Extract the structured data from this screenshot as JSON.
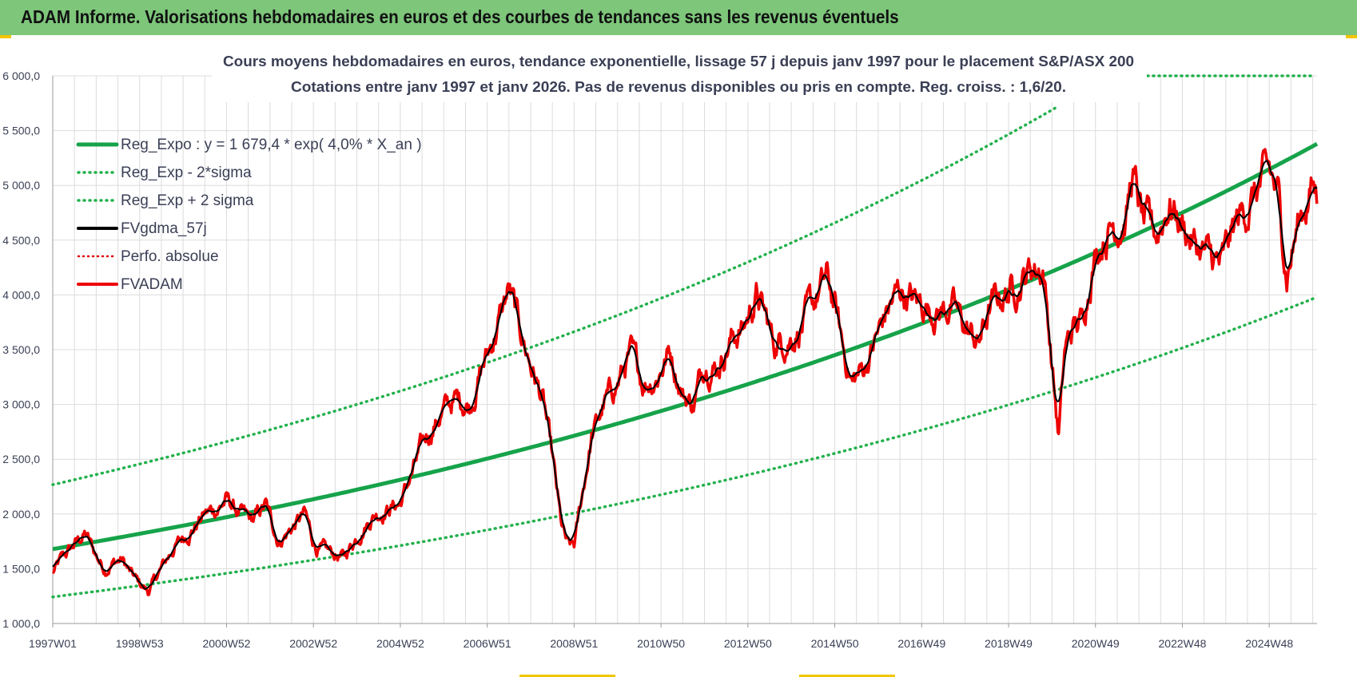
{
  "banner": {
    "title": "ADAM Informe. Valorisations hebdomadaires en euros et des courbes de tendances sans les revenus éventuels"
  },
  "chart_data": {
    "type": "line",
    "title_lines": [
      "Cours moyens hebdomadaires en euros, tendance exponentielle, lissage 57 j depuis janv 1997 pour le placement S&P/ASX 200",
      "Cotations entre janv 1997 et janv 2026. Pas de revenus disponibles ou pris  en compte. Reg. croiss. : 1,6/20."
    ],
    "xlabel": "",
    "ylabel": "",
    "x_range": [
      1997.0,
      2026.1
    ],
    "ylim": [
      1000,
      6000
    ],
    "y_ticks": [
      1000,
      1500,
      2000,
      2500,
      3000,
      3500,
      4000,
      4500,
      5000,
      5500,
      6000
    ],
    "y_tick_labels": [
      "1 000,0",
      "1 500,0",
      "2 000,0",
      "2 500,0",
      "3 000,0",
      "3 500,0",
      "4 000,0",
      "4 500,0",
      "5 000,0",
      "5 500,0",
      "6 000,0"
    ],
    "x_ticks": [
      1997.0,
      1999.0,
      2001.0,
      2003.0,
      2005.0,
      2007.0,
      2009.0,
      2011.0,
      2013.0,
      2015.0,
      2017.0,
      2019.0,
      2021.0,
      2023.0,
      2025.0
    ],
    "x_tick_labels": [
      "1997W01",
      "1998W53",
      "2000W52",
      "2002W52",
      "2004W52",
      "2006W51",
      "2008W51",
      "2010W50",
      "2012W50",
      "2014W50",
      "2016W49",
      "2018W49",
      "2020W49",
      "2022W48",
      "2024W48"
    ],
    "grid": true,
    "legend_position": "top-left",
    "colors": {
      "trend": "#16a34a",
      "band": "#22b14c",
      "smooth": "#000000",
      "perf": "#e00000",
      "price": "#ee0000",
      "grid": "#dcdcdc",
      "axis_text": "#3a3f55"
    },
    "series": [
      {
        "name": "Reg_Expo : y = 1 679,4 * exp( 4,0% *  X_an )",
        "kind": "trend",
        "style": "solid"
      },
      {
        "name": "Reg_Exp - 2*sigma",
        "kind": "band_low",
        "style": "dotted"
      },
      {
        "name": "Reg_Exp + 2 sigma",
        "kind": "band_high",
        "style": "dotted"
      },
      {
        "name": "FVgdma_57j",
        "kind": "smooth",
        "style": "solid"
      },
      {
        "name": "Perfo. absolue",
        "kind": "perf",
        "style": "dotted"
      },
      {
        "name": "FVADAM",
        "kind": "price",
        "style": "solid"
      }
    ],
    "trend_params": {
      "a": 1679.4,
      "growth": 0.04,
      "lower_band_factor": 0.74,
      "upper_band_factor": 1.35,
      "upper_band_cap": 6000
    },
    "price_points": {
      "x": [
        1997.0,
        1997.2,
        1997.5,
        1997.75,
        1998.0,
        1998.2,
        1998.4,
        1998.6,
        1998.8,
        1999.0,
        1999.2,
        1999.5,
        1999.8,
        2000.0,
        2000.25,
        2000.5,
        2000.8,
        2001.0,
        2001.3,
        2001.6,
        2001.9,
        2002.2,
        2002.5,
        2002.8,
        2003.0,
        2003.1,
        2003.4,
        2003.7,
        2004.0,
        2004.4,
        2004.7,
        2005.0,
        2005.3,
        2005.6,
        2006.0,
        2006.3,
        2006.6,
        2006.9,
        2007.1,
        2007.3,
        2007.5,
        2007.7,
        2007.9,
        2008.1,
        2008.3,
        2008.5,
        2008.7,
        2008.85,
        2009.0,
        2009.2,
        2009.4,
        2009.7,
        2010.0,
        2010.3,
        2010.6,
        2010.9,
        2011.2,
        2011.5,
        2011.75,
        2012.0,
        2012.3,
        2012.6,
        2012.9,
        2013.2,
        2013.4,
        2013.6,
        2013.9,
        2014.2,
        2014.5,
        2014.8,
        2015.0,
        2015.2,
        2015.4,
        2015.7,
        2016.0,
        2016.2,
        2016.5,
        2016.8,
        2017.1,
        2017.4,
        2017.7,
        2018.0,
        2018.3,
        2018.6,
        2018.9,
        2019.2,
        2019.5,
        2019.8,
        2019.95,
        2020.15,
        2020.3,
        2020.5,
        2020.7,
        2020.9,
        2021.1,
        2021.4,
        2021.7,
        2021.85,
        2022.1,
        2022.4,
        2022.7,
        2023.0,
        2023.3,
        2023.6,
        2023.9,
        2024.1,
        2024.3,
        2024.5,
        2024.8,
        2025.0,
        2025.2,
        2025.4,
        2025.7,
        2026.0,
        2026.1
      ],
      "y": [
        1460,
        1580,
        1720,
        1820,
        1620,
        1500,
        1560,
        1580,
        1450,
        1360,
        1290,
        1500,
        1700,
        1780,
        1880,
        2000,
        2050,
        2130,
        2000,
        1930,
        2080,
        1750,
        1870,
        2000,
        1750,
        1680,
        1640,
        1600,
        1800,
        2000,
        2050,
        2100,
        2400,
        2700,
        2950,
        3050,
        3000,
        3350,
        3550,
        3800,
        4050,
        3750,
        3500,
        3250,
        3000,
        2500,
        1900,
        1700,
        1700,
        2200,
        2700,
        3000,
        3200,
        3450,
        3200,
        3250,
        3500,
        3100,
        3000,
        3400,
        3350,
        3600,
        3700,
        4000,
        3800,
        3550,
        3600,
        3700,
        3900,
        4150,
        3900,
        3500,
        3200,
        3350,
        3650,
        3850,
        4050,
        3950,
        3900,
        3850,
        3900,
        3700,
        3550,
        3900,
        4000,
        4100,
        4250,
        4250,
        3600,
        2700,
        3500,
        3700,
        3750,
        4250,
        4500,
        4650,
        4700,
        5100,
        4650,
        4550,
        4850,
        4650,
        4450,
        4350,
        4250,
        4500,
        4700,
        4800,
        5000,
        5100,
        4900,
        4200,
        4700,
        5000,
        4900
      ]
    }
  }
}
